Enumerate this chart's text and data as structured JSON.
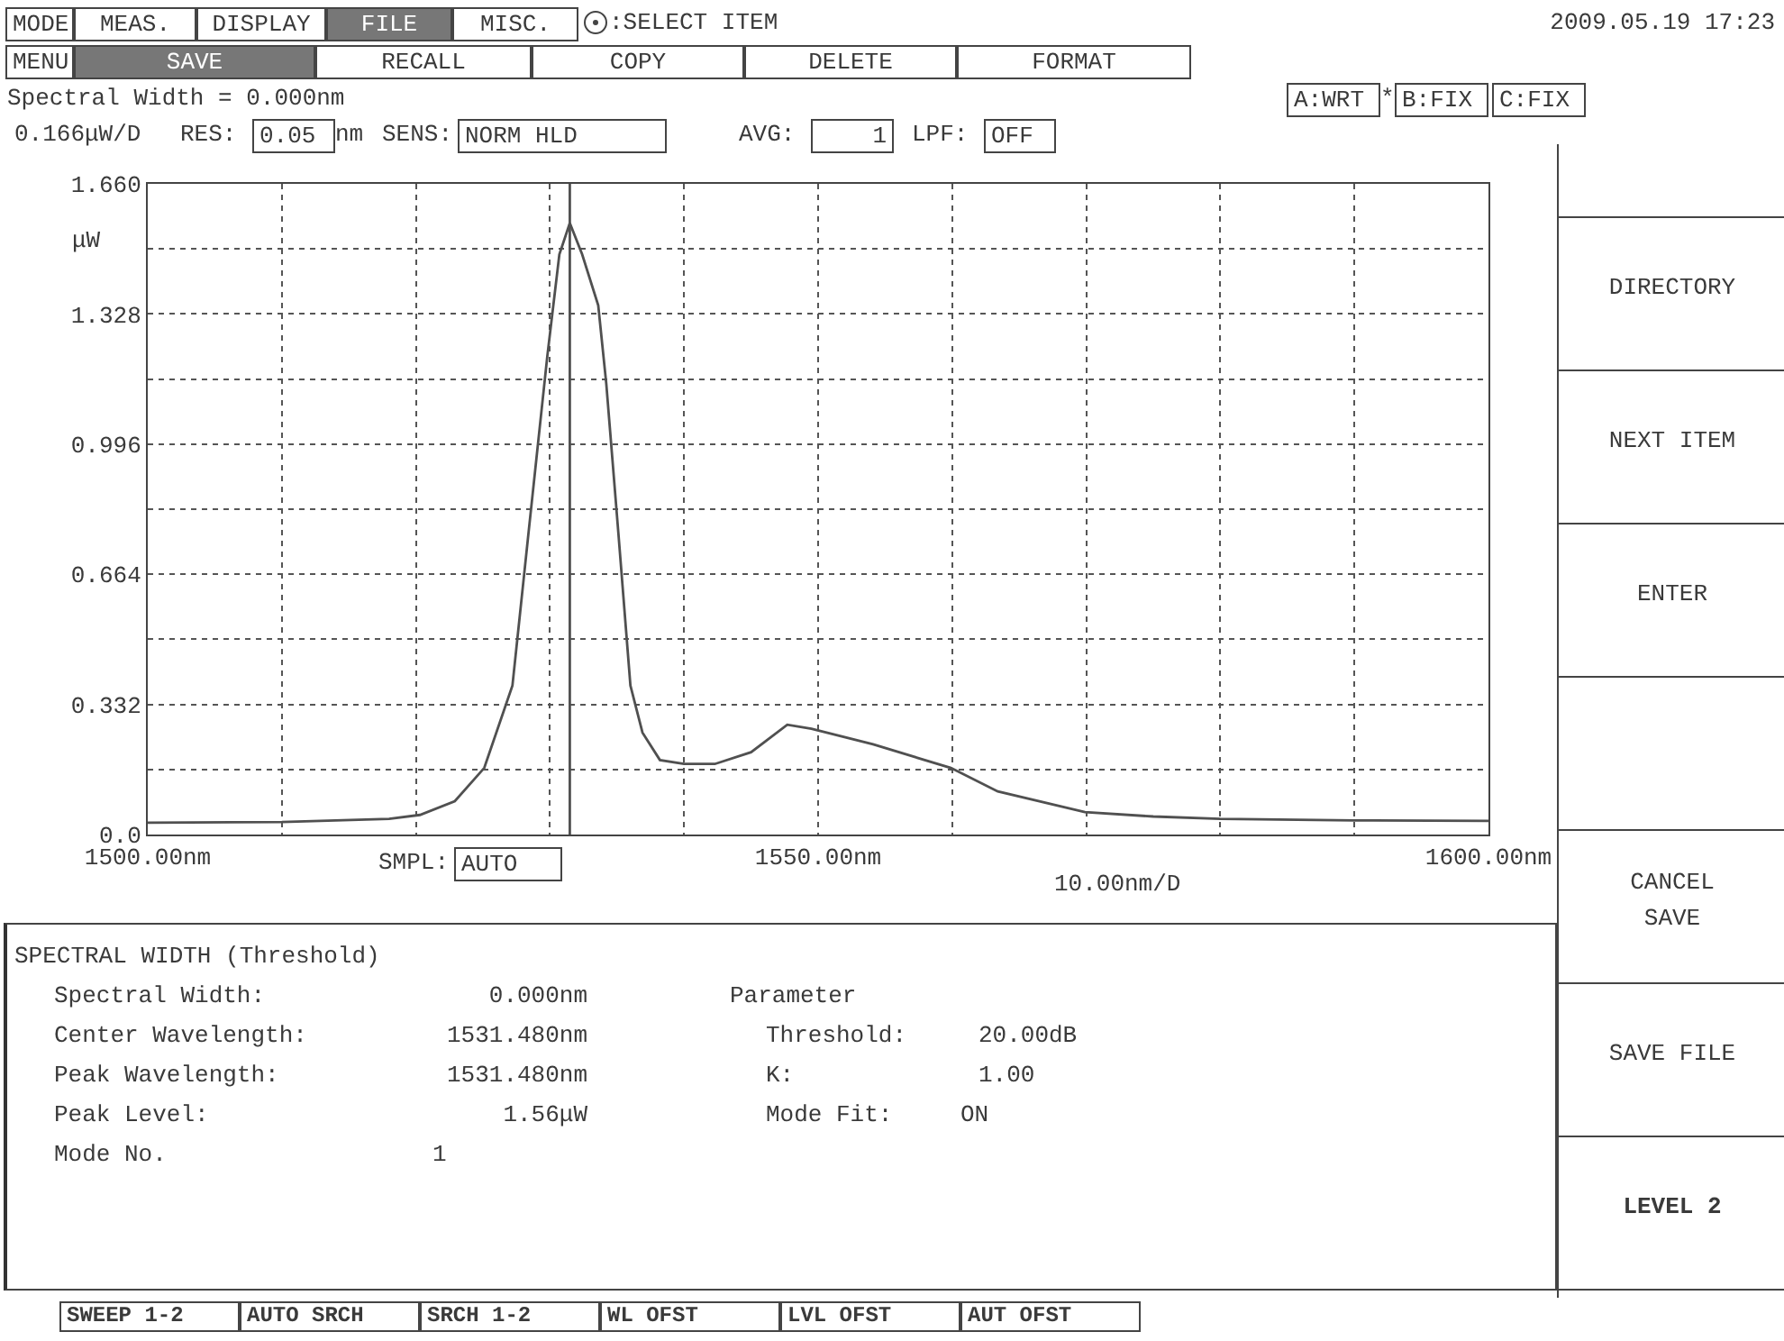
{
  "chart_data": {
    "type": "line",
    "ylabel": "μW",
    "color": "#505050",
    "x": [
      1500,
      1510,
      1518,
      1520.3,
      1522.9,
      1525.1,
      1527.2,
      1528.4,
      1529.8,
      1530.7,
      1531.48,
      1532.4,
      1533.6,
      1534.2,
      1535.1,
      1536,
      1536.9,
      1538.2,
      1540,
      1542.3,
      1545,
      1547.7,
      1549.5,
      1554.1,
      1559.9,
      1563.4,
      1569.9,
      1575,
      1580,
      1590,
      1600
    ],
    "values": [
      0.03,
      0.032,
      0.04,
      0.05,
      0.085,
      0.17,
      0.38,
      0.77,
      1.22,
      1.48,
      1.56,
      1.48,
      1.35,
      1.15,
      0.77,
      0.38,
      0.26,
      0.19,
      0.18,
      0.18,
      0.21,
      0.28,
      0.27,
      0.23,
      0.17,
      0.11,
      0.057,
      0.046,
      0.04,
      0.036,
      0.035
    ],
    "xlim": [
      1500,
      1600
    ],
    "xticks": [
      {
        "value": 1500,
        "label": "1500.00nm"
      },
      {
        "value": 1510,
        "label": null
      },
      {
        "value": 1520,
        "label": null
      },
      {
        "value": 1530,
        "label": null
      },
      {
        "value": 1540,
        "label": null
      },
      {
        "value": 1550,
        "label": "1550.00nm"
      },
      {
        "value": 1560,
        "label": null
      },
      {
        "value": 1570,
        "label": null
      },
      {
        "value": 1580,
        "label": null
      },
      {
        "value": 1590,
        "label": null
      },
      {
        "value": 1600,
        "label": "1600.00nm"
      }
    ],
    "ylim": [
      0,
      1.66
    ],
    "yticks": [
      {
        "value": 0,
        "label": "0.0"
      },
      {
        "value": 0.166,
        "label": null
      },
      0.332,
      {
        "value": 0.498,
        "label": null
      },
      0.664,
      {
        "value": 0.83,
        "label": null
      },
      0.996,
      {
        "value": 1.162,
        "label": null
      },
      1.328,
      {
        "value": 1.494,
        "label": null
      },
      {
        "value": 1.66,
        "label": "1.660"
      }
    ],
    "grid": true,
    "ref_lines": [
      {
        "axis": "x",
        "value": 1531.48,
        "color": "#505050"
      }
    ],
    "annotations": [
      "MODE",
      "MEAS.",
      "DISPLAY",
      "FILE",
      "MISC.",
      ":SELECT ITEM",
      "2009.05.19 17:23",
      "MENU",
      "SAVE",
      "RECALL",
      "COPY",
      "DELETE",
      "FORMAT",
      "Spectral Width = 0.000nm",
      "A:WRT",
      "*",
      "B:FIX",
      "C:FIX",
      "0.166μW/D",
      "RES:",
      "0.05",
      "nm",
      "SENS:",
      "NORM HLD",
      "AVG:",
      "1",
      "LPF:",
      "OFF",
      "SMPL:",
      "AUTO",
      "10.00nm/D",
      "DIRECTORY",
      "NEXT ITEM",
      "ENTER",
      "CANCEL SAVE",
      "SAVE FILE",
      "LEVEL 2",
      "SPECTRAL WIDTH (Threshold)",
      "Spectral Width:",
      "0.000nm",
      "Center Wavelength:",
      "1531.480nm",
      "Peak Wavelength:",
      "1531.480nm",
      "Peak Level:",
      "1.56μW",
      "Mode No.",
      "1",
      "Parameter",
      "Threshold:",
      "20.00dB",
      "K:",
      "1.00",
      "Mode Fit:",
      "ON",
      "SWEEP 1-2",
      "AUTO SRCH",
      "SRCH 1-2",
      "WL OFST",
      "LVL OFST",
      "AUT OFST"
    ]
  }
}
